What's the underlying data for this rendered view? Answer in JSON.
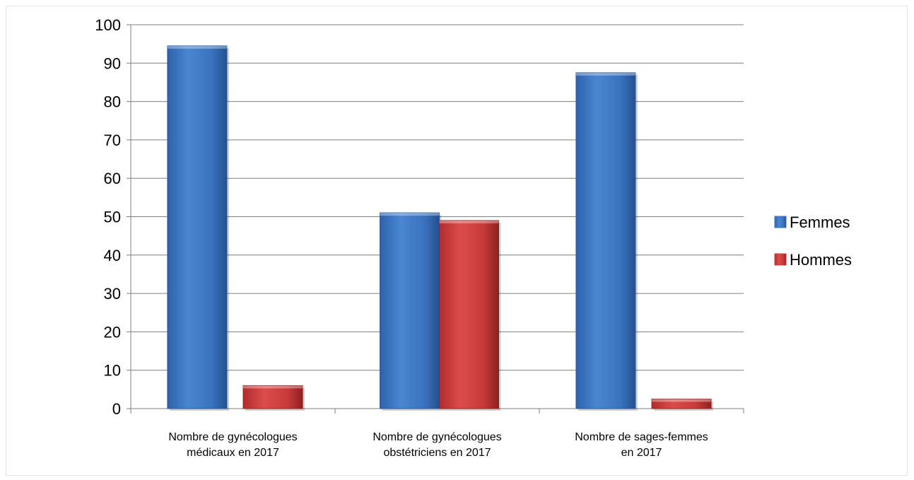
{
  "chart_data": {
    "type": "bar",
    "title": "",
    "xlabel": "",
    "ylabel": "",
    "categories": [
      [
        "Nombre de gynécologues",
        "médicaux en 2017"
      ],
      [
        "Nombre de gynécologues",
        "obstétriciens en 2017"
      ],
      [
        "Nombre de sages-femmes",
        "en 2017"
      ]
    ],
    "series": [
      {
        "name": "Femmes",
        "values": [
          94.5,
          51,
          87.5
        ],
        "color": "#3b73c0"
      },
      {
        "name": "Hommes",
        "values": [
          6,
          49,
          2.5
        ],
        "color": "#c93a3a"
      }
    ],
    "ylim": [
      0,
      100
    ],
    "yticks": [
      0,
      10,
      20,
      30,
      40,
      50,
      60,
      70,
      80,
      90,
      100
    ],
    "grid": true,
    "legend_position": "right"
  }
}
